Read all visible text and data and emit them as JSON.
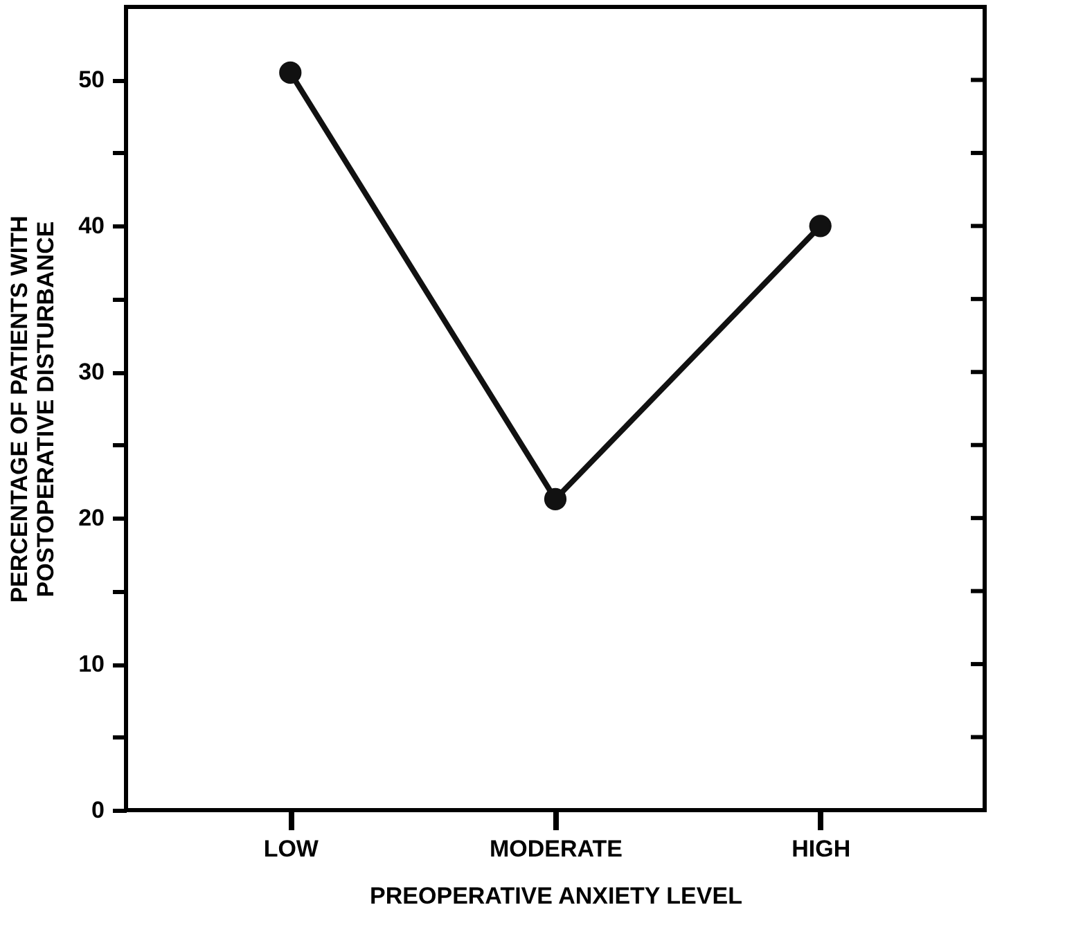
{
  "chart_data": {
    "type": "line",
    "xlabel": "PREOPERATIVE ANXIETY LEVEL",
    "ylabel": "PERCENTAGE OF PATIENTS WITH\nPOSTOPERATIVE DISTURBANCE",
    "categories": [
      "LOW",
      "MODERATE",
      "HIGH"
    ],
    "series": [
      {
        "color": "#111111",
        "values": [
          50.5,
          21.3,
          40
        ]
      }
    ],
    "ylim": [
      0,
      55
    ],
    "yticks": [
      0,
      {
        "value": 5,
        "label": null
      },
      10,
      {
        "value": 15,
        "label": null
      },
      20,
      {
        "value": 25,
        "label": null
      },
      30,
      {
        "value": 35,
        "label": null
      },
      40,
      {
        "value": 45,
        "label": null
      },
      50
    ],
    "marker": "circle",
    "line_style": "solid",
    "grid": false
  }
}
